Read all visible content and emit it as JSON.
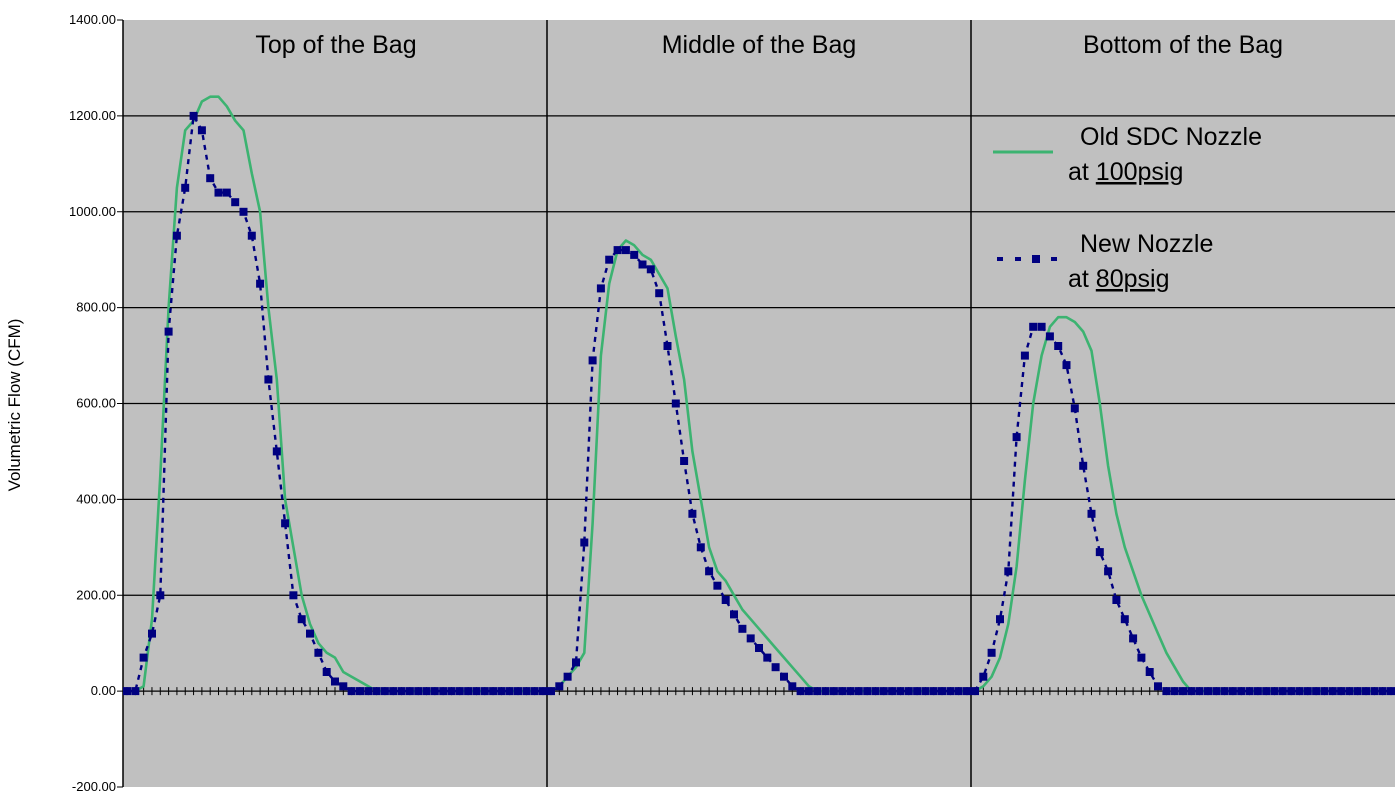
{
  "chart_data": {
    "type": "line",
    "title": "",
    "xlabel": "",
    "ylabel": "Volumetric Flow (CFM)",
    "ylim": [
      -200,
      1400
    ],
    "yticks": [
      "1400.00",
      "1200.00",
      "1000.00",
      "800.00",
      "600.00",
      "400.00",
      "200.00",
      "0.00",
      "-200.00"
    ],
    "grid": true,
    "colors": {
      "plot_background": "#c0c0c0",
      "old_series": "#3cb371",
      "new_series": "#000080"
    },
    "legend": {
      "placement": "top-right",
      "old_label_line1": "Old SDC Nozzle",
      "old_label_prefix": "at ",
      "old_label_value": "100psig",
      "new_label_line1": "New Nozzle",
      "new_label_prefix": "at ",
      "new_label_value": "80psig"
    },
    "panels": [
      {
        "title": "Top of the Bag",
        "series": [
          {
            "name": "Old SDC Nozzle at 100psig",
            "style": "solid",
            "x": [
              0,
              1,
              2,
              3,
              4,
              5,
              6,
              7,
              8,
              9,
              10,
              11,
              12,
              13,
              14,
              15,
              16,
              17,
              18,
              19,
              20,
              21,
              22,
              23,
              24,
              25,
              26,
              27,
              28,
              29,
              30,
              31,
              32,
              33,
              34,
              35,
              36,
              37,
              38,
              39,
              40,
              41,
              42,
              43,
              44,
              45,
              46,
              47,
              48,
              49,
              50
            ],
            "y": [
              0,
              0,
              10,
              150,
              450,
              800,
              1050,
              1170,
              1190,
              1230,
              1240,
              1240,
              1220,
              1190,
              1170,
              1080,
              1000,
              800,
              650,
              400,
              300,
              200,
              140,
              100,
              80,
              70,
              40,
              30,
              20,
              10,
              0,
              0,
              0,
              0,
              0,
              0,
              0,
              0,
              0,
              0,
              0,
              0,
              0,
              0,
              0,
              0,
              0,
              0,
              0,
              0,
              0
            ]
          },
          {
            "name": "New Nozzle at 80psig",
            "style": "dashed-markers",
            "x": [
              0,
              1,
              2,
              3,
              4,
              5,
              6,
              7,
              8,
              9,
              10,
              11,
              12,
              13,
              14,
              15,
              16,
              17,
              18,
              19,
              20,
              21,
              22,
              23,
              24,
              25,
              26,
              27,
              28,
              29,
              30,
              31,
              32,
              33,
              34,
              35,
              36,
              37,
              38,
              39,
              40,
              41,
              42,
              43,
              44,
              45,
              46,
              47,
              48,
              49,
              50
            ],
            "y": [
              0,
              0,
              70,
              120,
              200,
              750,
              950,
              1050,
              1200,
              1170,
              1070,
              1040,
              1040,
              1020,
              1000,
              950,
              850,
              650,
              500,
              350,
              200,
              150,
              120,
              80,
              40,
              20,
              10,
              0,
              0,
              0,
              0,
              0,
              0,
              0,
              0,
              0,
              0,
              0,
              0,
              0,
              0,
              0,
              0,
              0,
              0,
              0,
              0,
              0,
              0,
              0,
              0
            ]
          }
        ]
      },
      {
        "title": "Middle of the Bag",
        "series": [
          {
            "name": "Old SDC Nozzle at 100psig",
            "style": "solid",
            "x": [
              0,
              1,
              2,
              3,
              4,
              5,
              6,
              7,
              8,
              9,
              10,
              11,
              12,
              13,
              14,
              15,
              16,
              17,
              18,
              19,
              20,
              21,
              22,
              23,
              24,
              25,
              26,
              27,
              28,
              29,
              30,
              31,
              32,
              33,
              34,
              35,
              36,
              37,
              38,
              39,
              40,
              41,
              42,
              43,
              44,
              45,
              46,
              47,
              48,
              49,
              50
            ],
            "y": [
              0,
              10,
              30,
              50,
              80,
              350,
              700,
              850,
              920,
              940,
              930,
              910,
              900,
              870,
              840,
              740,
              650,
              500,
              400,
              300,
              250,
              230,
              200,
              170,
              150,
              130,
              110,
              90,
              70,
              50,
              30,
              10,
              0,
              0,
              0,
              0,
              0,
              0,
              0,
              0,
              0,
              0,
              0,
              0,
              0,
              0,
              0,
              0,
              0,
              0,
              0
            ]
          },
          {
            "name": "New Nozzle at 80psig",
            "style": "dashed-markers",
            "x": [
              0,
              1,
              2,
              3,
              4,
              5,
              6,
              7,
              8,
              9,
              10,
              11,
              12,
              13,
              14,
              15,
              16,
              17,
              18,
              19,
              20,
              21,
              22,
              23,
              24,
              25,
              26,
              27,
              28,
              29,
              30,
              31,
              32,
              33,
              34,
              35,
              36,
              37,
              38,
              39,
              40,
              41,
              42,
              43,
              44,
              45,
              46,
              47,
              48,
              49,
              50
            ],
            "y": [
              0,
              10,
              30,
              60,
              310,
              690,
              840,
              900,
              920,
              920,
              910,
              890,
              880,
              830,
              720,
              600,
              480,
              370,
              300,
              250,
              220,
              190,
              160,
              130,
              110,
              90,
              70,
              50,
              30,
              10,
              0,
              0,
              0,
              0,
              0,
              0,
              0,
              0,
              0,
              0,
              0,
              0,
              0,
              0,
              0,
              0,
              0,
              0,
              0,
              0,
              0
            ]
          }
        ]
      },
      {
        "title": "Bottom of the Bag",
        "series": [
          {
            "name": "Old SDC Nozzle at 100psig",
            "style": "solid",
            "x": [
              0,
              1,
              2,
              3,
              4,
              5,
              6,
              7,
              8,
              9,
              10,
              11,
              12,
              13,
              14,
              15,
              16,
              17,
              18,
              19,
              20,
              21,
              22,
              23,
              24,
              25,
              26,
              27,
              28,
              29,
              30,
              31,
              32,
              33,
              34,
              35,
              36,
              37,
              38,
              39,
              40,
              41,
              42,
              43,
              44,
              45,
              46,
              47,
              48,
              49,
              50
            ],
            "y": [
              0,
              10,
              30,
              70,
              140,
              260,
              440,
              600,
              700,
              760,
              780,
              780,
              770,
              750,
              710,
              600,
              470,
              370,
              300,
              250,
              200,
              160,
              120,
              80,
              50,
              20,
              0,
              0,
              0,
              0,
              0,
              0,
              0,
              0,
              0,
              0,
              0,
              0,
              0,
              0,
              0,
              0,
              0,
              0,
              0,
              0,
              0,
              0,
              0,
              0,
              0
            ]
          },
          {
            "name": "New Nozzle at 80psig",
            "style": "dashed-markers",
            "x": [
              0,
              1,
              2,
              3,
              4,
              5,
              6,
              7,
              8,
              9,
              10,
              11,
              12,
              13,
              14,
              15,
              16,
              17,
              18,
              19,
              20,
              21,
              22,
              23,
              24,
              25,
              26,
              27,
              28,
              29,
              30,
              31,
              32,
              33,
              34,
              35,
              36,
              37,
              38,
              39,
              40,
              41,
              42,
              43,
              44,
              45,
              46,
              47,
              48,
              49,
              50
            ],
            "y": [
              0,
              30,
              80,
              150,
              250,
              530,
              700,
              760,
              760,
              740,
              720,
              680,
              590,
              470,
              370,
              290,
              250,
              190,
              150,
              110,
              70,
              40,
              10,
              0,
              0,
              0,
              0,
              0,
              0,
              0,
              0,
              0,
              0,
              0,
              0,
              0,
              0,
              0,
              0,
              0,
              0,
              0,
              0,
              0,
              0,
              0,
              0,
              0,
              0,
              0,
              0
            ]
          }
        ]
      }
    ]
  }
}
